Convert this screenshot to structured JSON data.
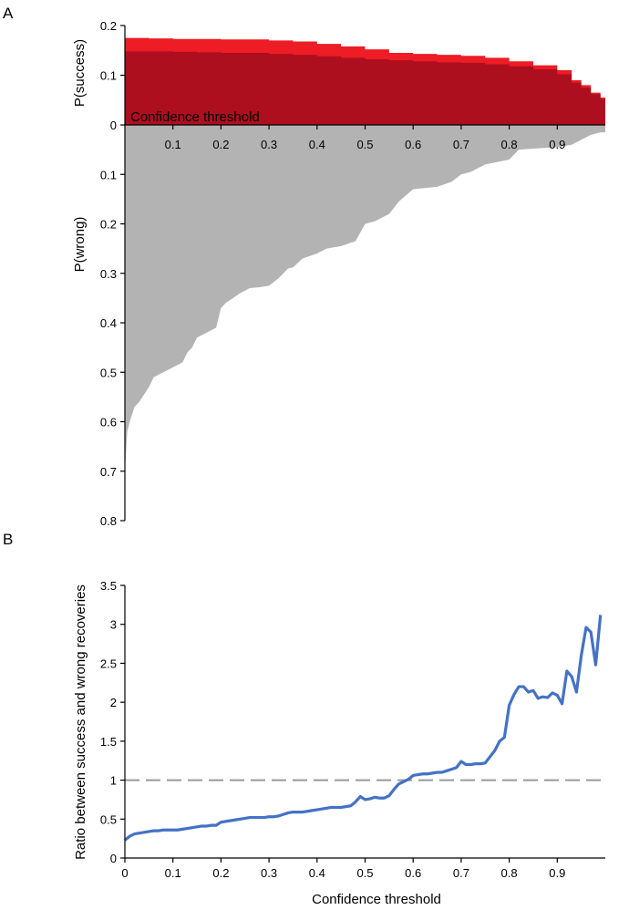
{
  "chart_data": [
    {
      "panel": "A",
      "type": "area",
      "xlabel": "Confidence threshold",
      "xlim": [
        0,
        1
      ],
      "x_ticks": [
        0.1,
        0.2,
        0.3,
        0.4,
        0.5,
        0.6,
        0.7,
        0.8,
        0.9
      ],
      "grid": false,
      "upper": {
        "ylabel": "P(success)",
        "ylim": [
          0,
          0.2
        ],
        "y_ticks": [
          0,
          0.1,
          0.2
        ],
        "x": [
          0,
          0.02,
          0.05,
          0.1,
          0.15,
          0.2,
          0.25,
          0.3,
          0.35,
          0.4,
          0.45,
          0.5,
          0.55,
          0.6,
          0.65,
          0.7,
          0.75,
          0.8,
          0.85,
          0.9,
          0.93,
          0.95,
          0.97,
          0.99
        ],
        "series": [
          {
            "color": "#ee1c25",
            "values": [
              0.175,
              0.175,
              0.174,
              0.173,
              0.173,
              0.172,
              0.172,
              0.17,
              0.168,
              0.163,
              0.158,
              0.152,
              0.145,
              0.143,
              0.141,
              0.139,
              0.135,
              0.128,
              0.12,
              0.11,
              0.09,
              0.08,
              0.065,
              0.055
            ]
          },
          {
            "color": "#ad0f1f",
            "values": [
              0.148,
              0.148,
              0.148,
              0.147,
              0.146,
              0.145,
              0.145,
              0.143,
              0.141,
              0.138,
              0.135,
              0.132,
              0.13,
              0.128,
              0.126,
              0.125,
              0.122,
              0.118,
              0.112,
              0.102,
              0.085,
              0.075,
              0.062,
              0.052
            ]
          }
        ]
      },
      "lower": {
        "ylabel": "P(wrong)",
        "ylim": [
          0,
          0.8
        ],
        "y_ticks": [
          0.1,
          0.2,
          0.3,
          0.4,
          0.5,
          0.6,
          0.7,
          0.8
        ],
        "series": [
          {
            "color": "#b3b3b3",
            "x": [
              0,
              0.005,
              0.01,
              0.02,
              0.03,
              0.05,
              0.06,
              0.08,
              0.1,
              0.12,
              0.13,
              0.14,
              0.15,
              0.17,
              0.19,
              0.2,
              0.21,
              0.24,
              0.26,
              0.28,
              0.3,
              0.32,
              0.34,
              0.35,
              0.37,
              0.4,
              0.42,
              0.45,
              0.48,
              0.5,
              0.52,
              0.55,
              0.57,
              0.6,
              0.65,
              0.68,
              0.7,
              0.72,
              0.75,
              0.8,
              0.82,
              0.85,
              0.88,
              0.9,
              0.93,
              0.95,
              0.97,
              0.99
            ],
            "values": [
              0.7,
              0.62,
              0.6,
              0.57,
              0.56,
              0.53,
              0.51,
              0.5,
              0.49,
              0.48,
              0.46,
              0.45,
              0.43,
              0.42,
              0.41,
              0.37,
              0.36,
              0.34,
              0.33,
              0.328,
              0.325,
              0.31,
              0.29,
              0.288,
              0.27,
              0.26,
              0.25,
              0.245,
              0.235,
              0.2,
              0.195,
              0.18,
              0.155,
              0.13,
              0.125,
              0.115,
              0.1,
              0.095,
              0.08,
              0.07,
              0.05,
              0.048,
              0.046,
              0.045,
              0.04,
              0.03,
              0.02,
              0.015
            ]
          }
        ]
      }
    },
    {
      "panel": "B",
      "type": "line",
      "xlabel": "Confidence threshold",
      "ylabel": "Ratio between success and wrong recoveries",
      "xlim": [
        0,
        1
      ],
      "ylim": [
        0,
        3.5
      ],
      "x_ticks": [
        0,
        0.1,
        0.2,
        0.3,
        0.4,
        0.5,
        0.6,
        0.7,
        0.8,
        0.9
      ],
      "y_ticks": [
        0,
        0.5,
        1,
        1.5,
        2,
        2.5,
        3,
        3.5
      ],
      "grid": false,
      "reference_line": {
        "y": 1,
        "color": "#999999",
        "dashed": true
      },
      "series": [
        {
          "color": "#4472c4",
          "x": [
            0,
            0.01,
            0.02,
            0.03,
            0.04,
            0.05,
            0.06,
            0.07,
            0.08,
            0.09,
            0.1,
            0.11,
            0.12,
            0.13,
            0.14,
            0.15,
            0.16,
            0.17,
            0.18,
            0.19,
            0.2,
            0.21,
            0.22,
            0.23,
            0.24,
            0.25,
            0.26,
            0.27,
            0.28,
            0.29,
            0.3,
            0.31,
            0.32,
            0.33,
            0.34,
            0.35,
            0.36,
            0.37,
            0.38,
            0.39,
            0.4,
            0.41,
            0.42,
            0.43,
            0.44,
            0.45,
            0.46,
            0.47,
            0.48,
            0.49,
            0.5,
            0.51,
            0.52,
            0.53,
            0.54,
            0.55,
            0.56,
            0.57,
            0.58,
            0.59,
            0.6,
            0.61,
            0.62,
            0.63,
            0.64,
            0.65,
            0.66,
            0.67,
            0.68,
            0.69,
            0.7,
            0.71,
            0.72,
            0.73,
            0.74,
            0.75,
            0.76,
            0.77,
            0.78,
            0.79,
            0.8,
            0.81,
            0.82,
            0.83,
            0.84,
            0.85,
            0.86,
            0.87,
            0.88,
            0.89,
            0.9,
            0.91,
            0.92,
            0.93,
            0.94,
            0.95,
            0.96,
            0.97,
            0.98,
            0.99
          ],
          "values": [
            0.23,
            0.28,
            0.31,
            0.32,
            0.33,
            0.34,
            0.35,
            0.35,
            0.36,
            0.36,
            0.36,
            0.36,
            0.37,
            0.38,
            0.39,
            0.4,
            0.41,
            0.41,
            0.42,
            0.42,
            0.46,
            0.47,
            0.48,
            0.49,
            0.5,
            0.51,
            0.52,
            0.52,
            0.52,
            0.52,
            0.53,
            0.53,
            0.54,
            0.56,
            0.58,
            0.59,
            0.59,
            0.59,
            0.6,
            0.61,
            0.62,
            0.63,
            0.64,
            0.65,
            0.65,
            0.65,
            0.66,
            0.67,
            0.72,
            0.79,
            0.75,
            0.76,
            0.78,
            0.77,
            0.77,
            0.8,
            0.88,
            0.95,
            0.98,
            1.01,
            1.06,
            1.07,
            1.08,
            1.08,
            1.09,
            1.1,
            1.1,
            1.12,
            1.14,
            1.16,
            1.24,
            1.2,
            1.2,
            1.21,
            1.21,
            1.22,
            1.3,
            1.38,
            1.5,
            1.55,
            1.96,
            2.1,
            2.2,
            2.2,
            2.13,
            2.15,
            2.05,
            2.07,
            2.06,
            2.12,
            2.09,
            1.98,
            2.4,
            2.33,
            2.13,
            2.6,
            2.96,
            2.9,
            2.48,
            3.12
          ]
        }
      ]
    }
  ]
}
